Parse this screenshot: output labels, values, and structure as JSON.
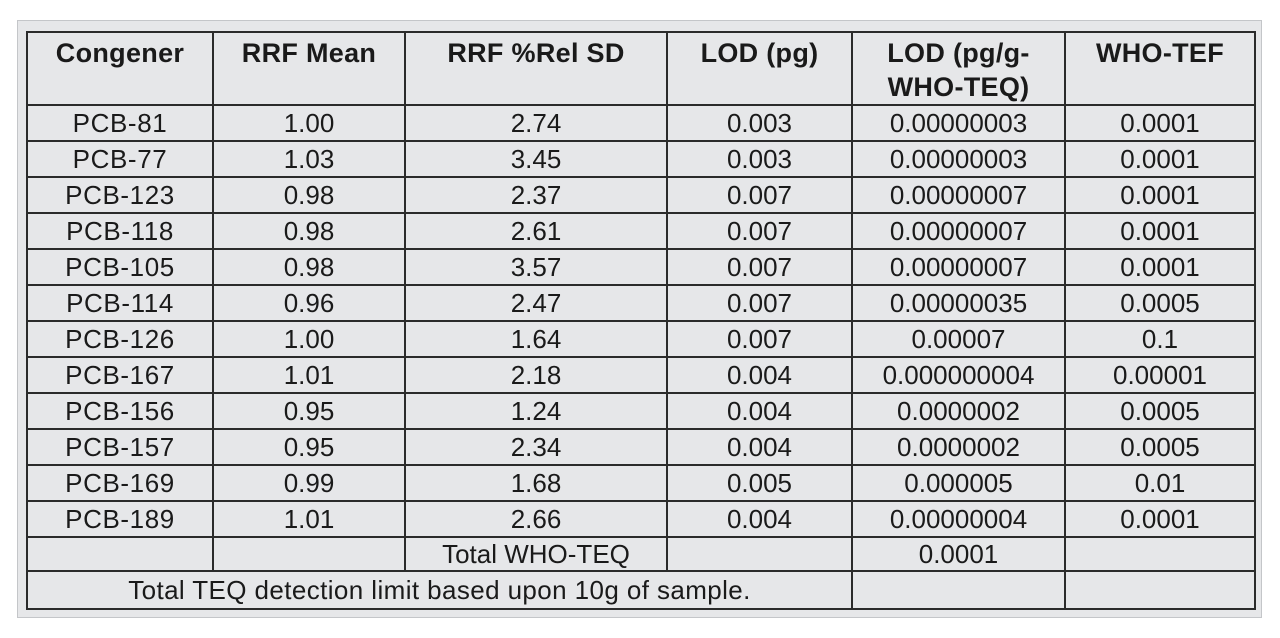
{
  "table": {
    "headers": [
      "Congener",
      "RRF Mean",
      "RRF %Rel SD",
      "LOD (pg)",
      "LOD (pg/g- WHO-TEQ)",
      "WHO-TEF"
    ],
    "rows": [
      {
        "congener": "PCB-81",
        "rrf_mean": "1.00",
        "rrf_rel_sd": "2.74",
        "lod_pg": "0.003",
        "lod_pg_g_who_teq": "0.00000003",
        "who_tef": "0.0001"
      },
      {
        "congener": "PCB-77",
        "rrf_mean": "1.03",
        "rrf_rel_sd": "3.45",
        "lod_pg": "0.003",
        "lod_pg_g_who_teq": "0.00000003",
        "who_tef": "0.0001"
      },
      {
        "congener": "PCB-123",
        "rrf_mean": "0.98",
        "rrf_rel_sd": "2.37",
        "lod_pg": "0.007",
        "lod_pg_g_who_teq": "0.00000007",
        "who_tef": "0.0001"
      },
      {
        "congener": "PCB-118",
        "rrf_mean": "0.98",
        "rrf_rel_sd": "2.61",
        "lod_pg": "0.007",
        "lod_pg_g_who_teq": "0.00000007",
        "who_tef": "0.0001"
      },
      {
        "congener": "PCB-105",
        "rrf_mean": "0.98",
        "rrf_rel_sd": "3.57",
        "lod_pg": "0.007",
        "lod_pg_g_who_teq": "0.00000007",
        "who_tef": "0.0001"
      },
      {
        "congener": "PCB-114",
        "rrf_mean": "0.96",
        "rrf_rel_sd": "2.47",
        "lod_pg": "0.007",
        "lod_pg_g_who_teq": "0.00000035",
        "who_tef": "0.0005"
      },
      {
        "congener": "PCB-126",
        "rrf_mean": "1.00",
        "rrf_rel_sd": "1.64",
        "lod_pg": "0.007",
        "lod_pg_g_who_teq": "0.00007",
        "who_tef": "0.1"
      },
      {
        "congener": "PCB-167",
        "rrf_mean": "1.01",
        "rrf_rel_sd": "2.18",
        "lod_pg": "0.004",
        "lod_pg_g_who_teq": "0.000000004",
        "who_tef": "0.00001"
      },
      {
        "congener": "PCB-156",
        "rrf_mean": "0.95",
        "rrf_rel_sd": "1.24",
        "lod_pg": "0.004",
        "lod_pg_g_who_teq": "0.0000002",
        "who_tef": "0.0005"
      },
      {
        "congener": "PCB-157",
        "rrf_mean": "0.95",
        "rrf_rel_sd": "2.34",
        "lod_pg": "0.004",
        "lod_pg_g_who_teq": "0.0000002",
        "who_tef": "0.0005"
      },
      {
        "congener": "PCB-169",
        "rrf_mean": "0.99",
        "rrf_rel_sd": "1.68",
        "lod_pg": "0.005",
        "lod_pg_g_who_teq": "0.000005",
        "who_tef": "0.01"
      },
      {
        "congener": "PCB-189",
        "rrf_mean": "1.01",
        "rrf_rel_sd": "2.66",
        "lod_pg": "0.004",
        "lod_pg_g_who_teq": "0.00000004",
        "who_tef": "0.0001"
      }
    ],
    "total": {
      "label": "Total WHO-TEQ",
      "value": "0.0001"
    },
    "footnote": "Total TEQ detection limit based upon 10g of sample."
  },
  "colors": {
    "frame_background": "#e6e7e9",
    "grid_lines": "#2b2b2b",
    "text": "#1a1a1a"
  }
}
